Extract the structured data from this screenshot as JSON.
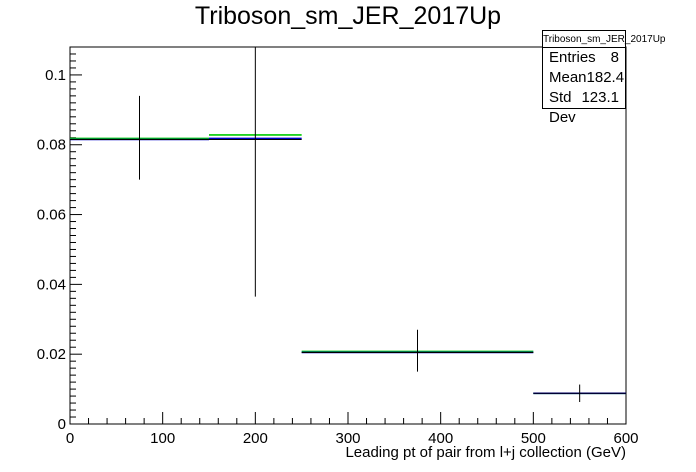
{
  "chart_data": {
    "type": "histogram",
    "title": "Triboson_sm_JER_2017Up",
    "xlabel": "Leading pt of pair from l+j collection (GeV)",
    "ylabel": "",
    "xlim": [
      0,
      600
    ],
    "ylim": [
      0,
      0.108
    ],
    "x_ticks": [
      0,
      100,
      200,
      300,
      400,
      500,
      600
    ],
    "y_ticks": [
      0,
      0.02,
      0.04,
      0.06,
      0.08,
      0.1
    ],
    "x_tick_labels": [
      "0",
      "100",
      "200",
      "300",
      "400",
      "500",
      "600"
    ],
    "y_tick_labels": [
      "0",
      "0.02",
      "0.04",
      "0.06",
      "0.08",
      "0.1"
    ],
    "bin_edges": [
      0,
      150,
      250,
      500,
      600
    ],
    "series": [
      {
        "style": "errorbars",
        "color": "#000000",
        "values": [
          0.0815,
          0.0815,
          0.0205,
          0.0088
        ],
        "errors_low": [
          0.0115,
          0.045,
          0.0055,
          0.0025
        ],
        "errors_high": [
          0.0125,
          0.0265,
          0.0065,
          0.0025
        ]
      },
      {
        "style": "step",
        "color": "#0000cc",
        "values": [
          0.0815,
          0.0818,
          0.0205,
          0.0088
        ]
      },
      {
        "style": "step",
        "color": "#00cc00",
        "values": [
          0.0818,
          0.0828,
          0.0208,
          0.0088
        ]
      }
    ]
  },
  "stats": {
    "title": "Triboson_sm_JER_2017Up",
    "rows": [
      {
        "label": "Entries",
        "value": "8"
      },
      {
        "label": "Mean",
        "value": "182.4"
      },
      {
        "label": "Std Dev",
        "value": "123.1"
      }
    ]
  }
}
